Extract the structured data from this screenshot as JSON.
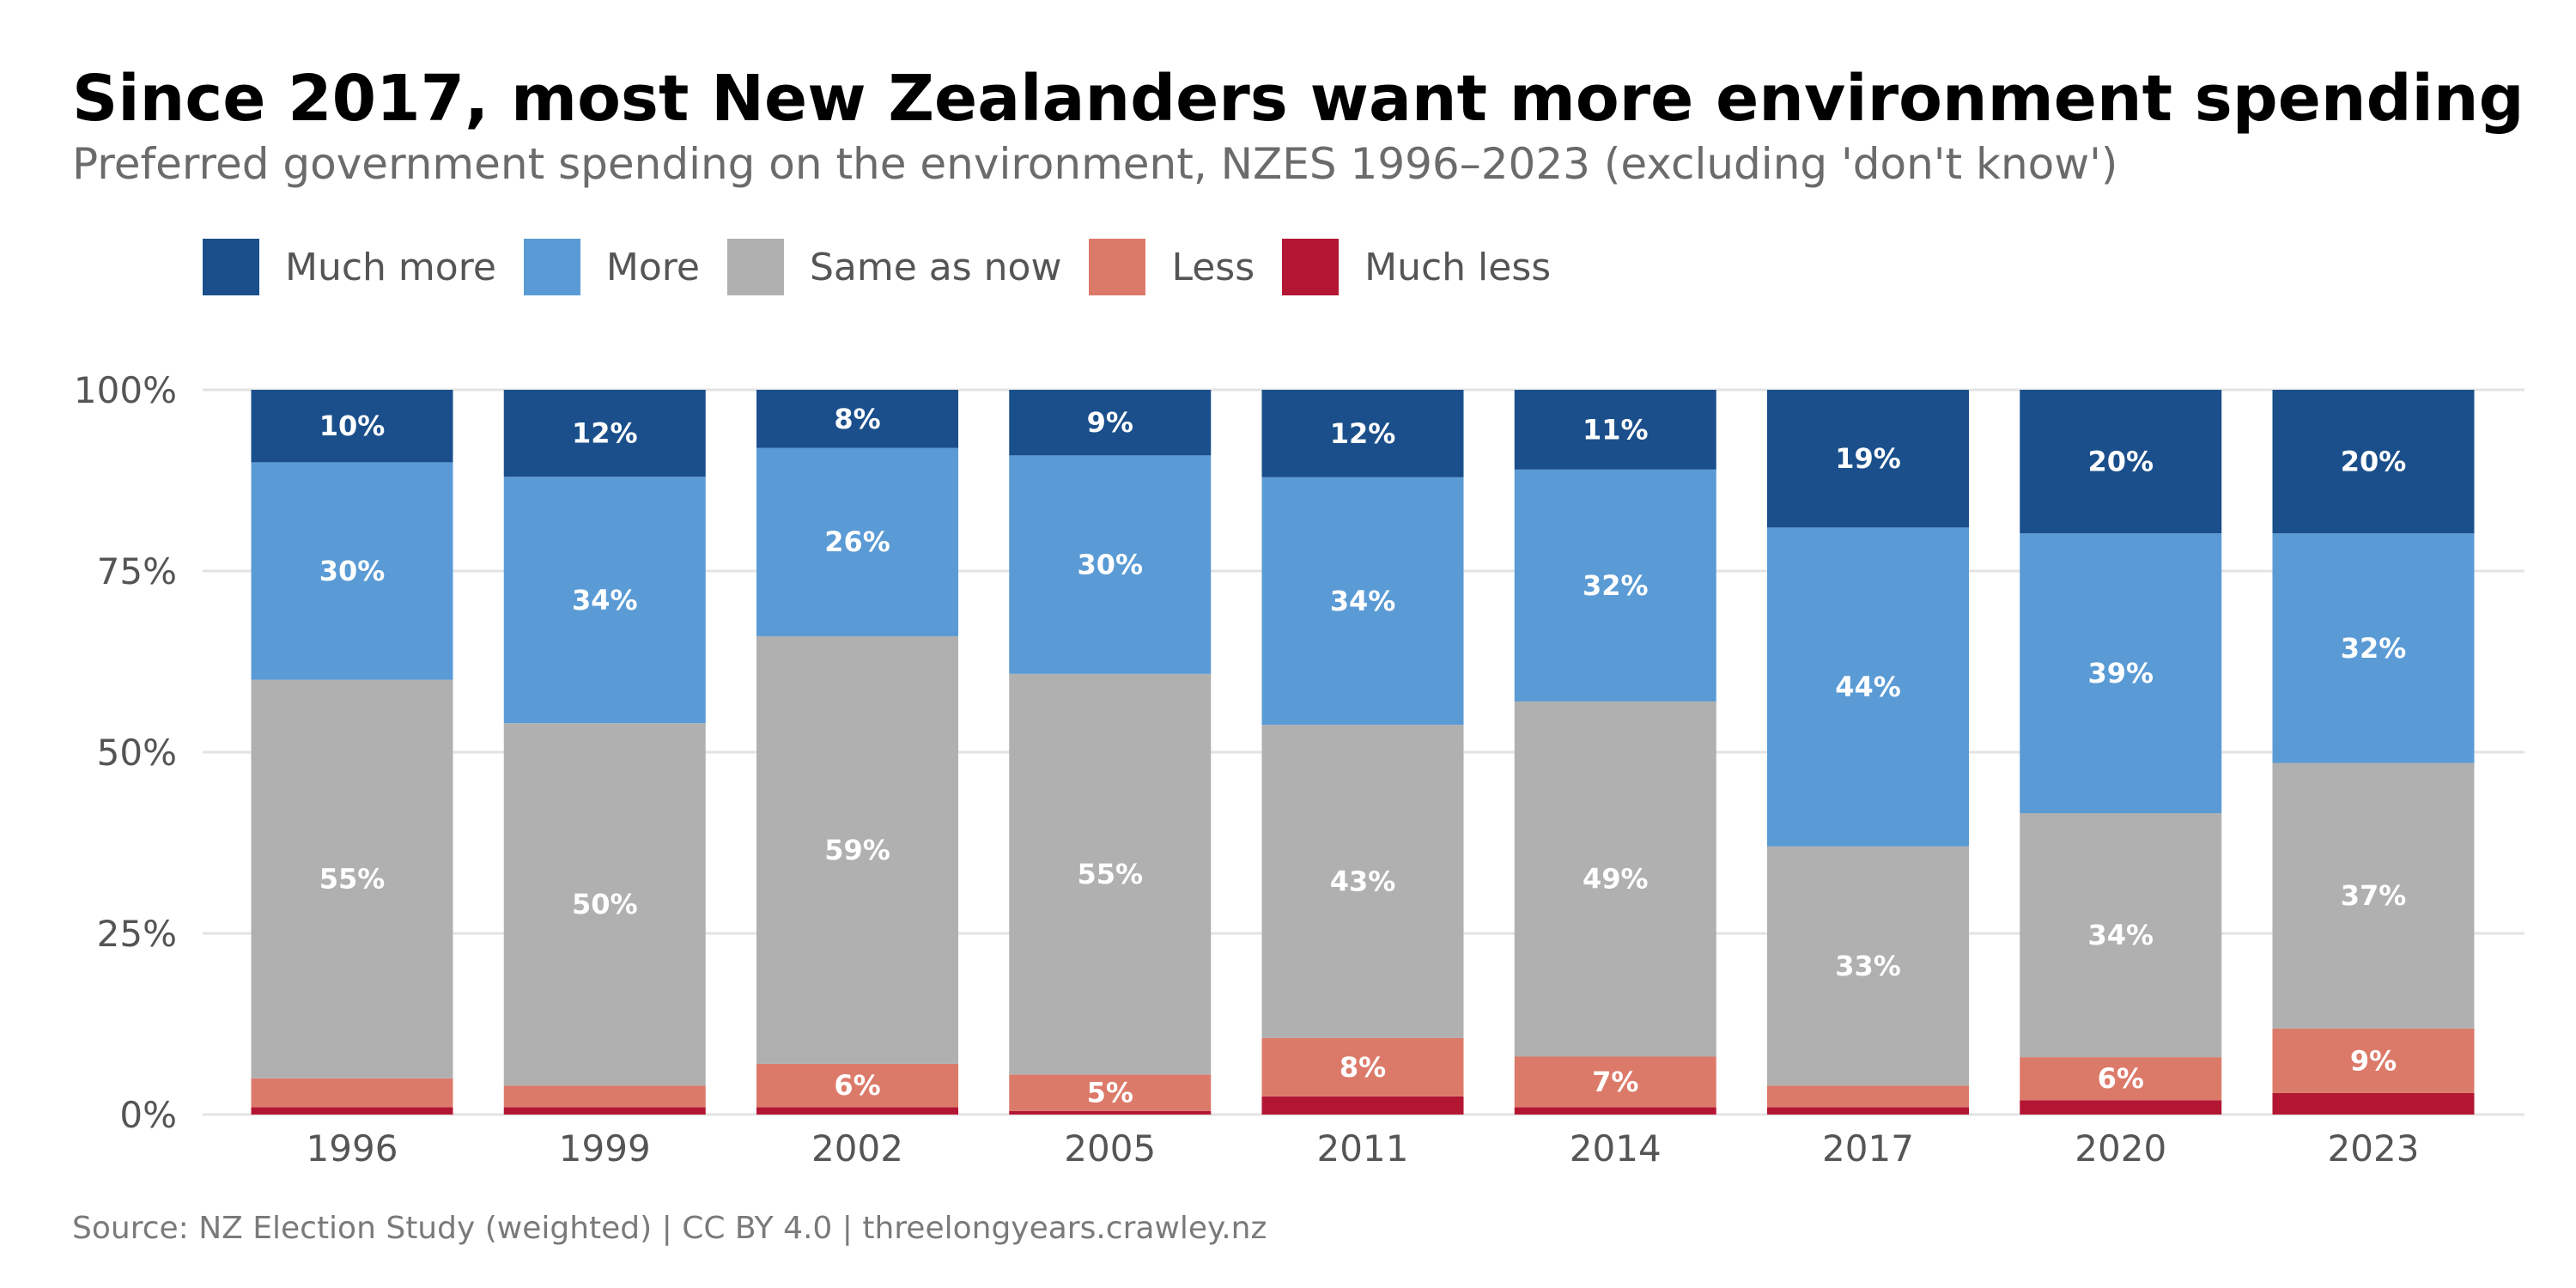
{
  "title": "Since 2017, most New Zealanders want more environment spending",
  "subtitle": "Preferred government spending on the environment, NZES 1996–2023 (excluding 'don't know')",
  "source": "Source: NZ Election Study (weighted) | CC BY 4.0 | threelongyears.crawley.nz",
  "legend": [
    {
      "label": "Much more",
      "color": "#1a4f8b"
    },
    {
      "label": "More",
      "color": "#5a9bd5"
    },
    {
      "label": "Same as now",
      "color": "#b0b0b0"
    },
    {
      "label": "Less",
      "color": "#dc7a6a"
    },
    {
      "label": "Much less",
      "color": "#b31633"
    }
  ],
  "chart_data": {
    "type": "bar",
    "stacked": true,
    "orientation": "vertical",
    "categories": [
      "1996",
      "1999",
      "2002",
      "2005",
      "2011",
      "2014",
      "2017",
      "2020",
      "2023"
    ],
    "series": [
      {
        "name": "Much less",
        "color": "#b31633",
        "values": [
          1,
          1,
          1,
          0.5,
          2.5,
          1,
          1,
          2,
          3
        ],
        "labels": [
          "",
          "",
          "",
          "",
          "",
          "",
          "",
          "",
          ""
        ]
      },
      {
        "name": "Less",
        "color": "#dc7a6a",
        "values": [
          4,
          3,
          6,
          5,
          8,
          7,
          3,
          6,
          9
        ],
        "labels": [
          "",
          "",
          "6%",
          "5%",
          "8%",
          "7%",
          "",
          "6%",
          "9%"
        ]
      },
      {
        "name": "Same as now",
        "color": "#b0b0b0",
        "values": [
          55,
          50,
          59,
          55,
          43,
          49,
          33,
          34,
          37
        ],
        "labels": [
          "55%",
          "50%",
          "59%",
          "55%",
          "43%",
          "49%",
          "33%",
          "34%",
          "37%"
        ]
      },
      {
        "name": "More",
        "color": "#5a9bd5",
        "values": [
          30,
          34,
          26,
          30,
          34,
          32,
          44,
          39,
          32
        ],
        "labels": [
          "30%",
          "34%",
          "26%",
          "30%",
          "34%",
          "32%",
          "44%",
          "39%",
          "32%"
        ]
      },
      {
        "name": "Much more",
        "color": "#1a4f8b",
        "values": [
          10,
          12,
          8,
          9,
          12,
          11,
          19,
          20,
          20
        ],
        "labels": [
          "10%",
          "12%",
          "8%",
          "9%",
          "12%",
          "11%",
          "19%",
          "20%",
          "20%"
        ]
      }
    ],
    "yticks": [
      "0%",
      "25%",
      "50%",
      "75%",
      "100%"
    ],
    "ylim": [
      0,
      100
    ],
    "grid": true,
    "legend_position": "top"
  }
}
